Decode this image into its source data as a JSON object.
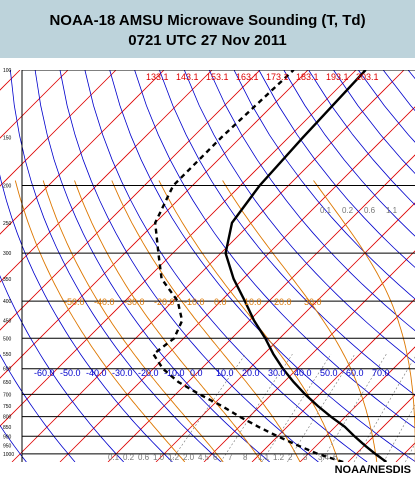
{
  "header": {
    "title_line1": "NOAA-18 AMSU Microwave Sounding (T, Td)",
    "title_line2": "0721 UTC  27  Nov 2011"
  },
  "credit": "NOAA/NESDIS",
  "colors": {
    "isotherm": "#dd0000",
    "dry_adiabat": "#0000cc",
    "moist_adiabat": "#dd7700",
    "mixing_ratio": "#777777",
    "isobar": "#000000",
    "sounding": "#000000",
    "header_bg": "#bdd3db"
  },
  "chart_data": {
    "type": "line",
    "diagram": "skew-T log-p",
    "title": "NOAA-18 AMSU Microwave Sounding (T, Td)",
    "ylabel": "",
    "xlabel": "",
    "pressure_levels_hpa": [
      100,
      150,
      200,
      250,
      300,
      350,
      400,
      450,
      500,
      550,
      600,
      650,
      700,
      750,
      800,
      850,
      900,
      950,
      1000
    ],
    "pressure_tick_labels": [
      "100",
      "150",
      "200",
      "250",
      "300",
      "350",
      "400",
      "450",
      "500",
      "550",
      "600",
      "650",
      "700",
      "750",
      "800",
      "850",
      "900",
      "950",
      "1000"
    ],
    "major_isobars_hpa": [
      100,
      200,
      300,
      400,
      500,
      600,
      700,
      800,
      900,
      1000
    ],
    "ylim_hpa": [
      1050,
      100
    ],
    "isotherm_labels": [
      "133.1",
      "143.1",
      "153.1",
      "163.1",
      "173.1",
      "183.1",
      "193.1",
      "203.1"
    ],
    "moist_adiabat_labels": [
      "-50.0",
      "-40.0",
      "-30.0",
      "-20.0",
      "-10.0",
      "0.0",
      "10.0",
      "20.0",
      "30.0"
    ],
    "dry_adiabat_labels": [
      "-60.0",
      "-50.0",
      "-40.0",
      "-30.0",
      "-20.0",
      "-10.0",
      "0.0",
      "10.0",
      "20.0",
      "30.0",
      "40.0",
      "50.0",
      "60.0",
      "70.0"
    ],
    "mixing_ratio_labels_bottom": [
      "0.1",
      "0.2",
      "0.6",
      "1.0",
      "1.2",
      "2.0",
      "4.5",
      "6",
      "7",
      "8",
      "1.1",
      "1.2",
      "2",
      "3",
      "3.4",
      "6"
    ],
    "mixing_ratio_labels_top": [
      "0.1",
      "0.2",
      "0.6",
      "1.1"
    ],
    "series": [
      {
        "name": "",
        "style": "solid",
        "points": [
          [
            1050,
            18
          ],
          [
            1000,
            14
          ],
          [
            950,
            10
          ],
          [
            900,
            6
          ],
          [
            850,
            2
          ],
          [
            800,
            -3
          ],
          [
            750,
            -8
          ],
          [
            700,
            -13
          ],
          [
            650,
            -18
          ],
          [
            600,
            -23
          ],
          [
            550,
            -28
          ],
          [
            500,
            -33
          ],
          [
            450,
            -39
          ],
          [
            400,
            -45
          ],
          [
            350,
            -52
          ],
          [
            300,
            -59
          ],
          [
            250,
            -64
          ],
          [
            200,
            -66
          ],
          [
            150,
            -67
          ],
          [
            100,
            -68
          ]
        ]
      },
      {
        "name": "",
        "style": "dashed",
        "points": [
          [
            1050,
            9
          ],
          [
            1000,
            2
          ],
          [
            950,
            -4
          ],
          [
            900,
            -10
          ],
          [
            850,
            -16
          ],
          [
            800,
            -22
          ],
          [
            750,
            -28
          ],
          [
            700,
            -35
          ],
          [
            650,
            -42
          ],
          [
            600,
            -48
          ],
          [
            550,
            -53
          ],
          [
            500,
            -52
          ],
          [
            450,
            -54
          ],
          [
            400,
            -59
          ],
          [
            350,
            -67
          ],
          [
            300,
            -73
          ],
          [
            250,
            -80
          ],
          [
            200,
            -84
          ],
          [
            150,
            -84
          ],
          [
            100,
            -83
          ]
        ]
      }
    ]
  }
}
